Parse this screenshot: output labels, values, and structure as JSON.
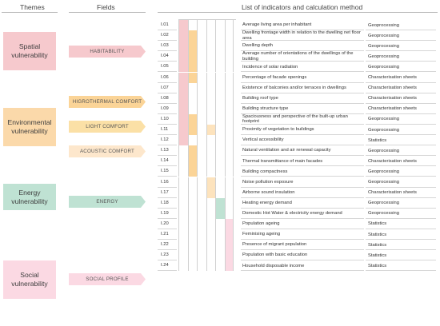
{
  "headers": {
    "themes": "Themes",
    "fields": "Fields",
    "list": "List of indicators and calculation method"
  },
  "colors": {
    "spatial": "#f6c9cd",
    "environmental": "#fbd9aa",
    "energy": "#bfe2d3",
    "social": "#fbd9e3",
    "cell_pink": "#f6c9cd",
    "cell_orange": "#fbd497",
    "cell_green": "#bfe2d3",
    "cell_rose": "#fbd9e3"
  },
  "themes": [
    {
      "label": "Spatial vulnerability",
      "key": "spatial"
    },
    {
      "label": "Environmental vulnerability",
      "key": "environmental"
    },
    {
      "label": "Energy vulnerability",
      "key": "energy"
    },
    {
      "label": "Social vulnerability",
      "key": "social"
    }
  ],
  "fields": [
    {
      "label": "HABITABILITY",
      "color": "#f6c9cd"
    },
    {
      "label": "HIGROTHERMAL COMFORT",
      "color": "#fbd497"
    },
    {
      "label": "LIGHT COMFORT",
      "color": "#fbe0a6"
    },
    {
      "label": "ACOUSTIC COMFORT",
      "color": "#fde7cc"
    },
    {
      "label": "ENERGY",
      "color": "#bfe2d3"
    },
    {
      "label": "SOCIAL PROFILE",
      "color": "#fbd9e3"
    }
  ],
  "indicators": [
    {
      "id": "I.01",
      "name": "Average living area per inhabitant",
      "method": "Geoprocessing",
      "cells": [
        1,
        0,
        0,
        0,
        0,
        0
      ]
    },
    {
      "id": "I.02",
      "name": "Dwelling frontage width in relation to the dwelling net floor area",
      "method": "Geoprocessing",
      "cells": [
        1,
        2,
        0,
        0,
        0,
        0
      ]
    },
    {
      "id": "I.03",
      "name": "Dwelling depth",
      "method": "Geoprocessing",
      "cells": [
        1,
        2,
        0,
        0,
        0,
        0
      ]
    },
    {
      "id": "I.04",
      "name": "Average number of orientations of the dwellings of the building",
      "method": "Geoprocessing",
      "cells": [
        1,
        2,
        0,
        0,
        0,
        0
      ]
    },
    {
      "id": "I.05",
      "name": "Incidence of solar radiation",
      "method": "Geoprocessing",
      "cells": [
        1,
        2,
        0,
        0,
        0,
        0
      ]
    },
    {
      "id": "I.06",
      "name": "Percentage of facade openings",
      "method": "Characterisation sheets",
      "cells": [
        1,
        2,
        0,
        0,
        0,
        0
      ]
    },
    {
      "id": "I.07",
      "name": "Existence of balconies and/or terraces in dwellings",
      "method": "Characterisation sheets",
      "cells": [
        1,
        0,
        0,
        0,
        0,
        0
      ]
    },
    {
      "id": "I.08",
      "name": "Building roof type",
      "method": "Characterisation sheets",
      "cells": [
        1,
        0,
        0,
        0,
        0,
        0
      ]
    },
    {
      "id": "I.09",
      "name": "Building structure type",
      "method": "Characterisation sheets",
      "cells": [
        1,
        0,
        0,
        0,
        0,
        0
      ]
    },
    {
      "id": "I.10",
      "name": "Spaciousness and perspective of the built-up urban footprint",
      "method": "Geoprocessing",
      "cells": [
        1,
        2,
        0,
        0,
        0,
        0
      ]
    },
    {
      "id": "I.11",
      "name": "Proximity of vegetation to buildings",
      "method": "Geoprocessing",
      "cells": [
        1,
        2,
        0,
        4,
        0,
        0
      ]
    },
    {
      "id": "I.12",
      "name": "Vertical accessibility",
      "method": "Statistics",
      "cells": [
        1,
        0,
        0,
        0,
        0,
        0
      ]
    },
    {
      "id": "I.13",
      "name": "Natural ventilation and air renewal capacity",
      "method": "Geoprocessing",
      "cells": [
        0,
        2,
        0,
        0,
        0,
        0
      ]
    },
    {
      "id": "I.14",
      "name": "Thermal transmittance of main facades",
      "method": "Characterisation sheets",
      "cells": [
        0,
        2,
        0,
        0,
        0,
        0
      ]
    },
    {
      "id": "I.15",
      "name": "Building compactness",
      "method": "Geoprocessing",
      "cells": [
        0,
        2,
        0,
        0,
        0,
        0
      ]
    },
    {
      "id": "I.16",
      "name": "Noise pollution exposure",
      "method": "Geoprocessing",
      "cells": [
        0,
        0,
        0,
        4,
        0,
        0
      ]
    },
    {
      "id": "I.17",
      "name": "Airborne sound insulation",
      "method": "Characterisation sheets",
      "cells": [
        0,
        0,
        0,
        4,
        0,
        0
      ]
    },
    {
      "id": "I.18",
      "name": "Heating energy demand",
      "method": "Geoprocessing",
      "cells": [
        0,
        0,
        0,
        0,
        5,
        0
      ]
    },
    {
      "id": "I.19",
      "name": "Domestic Hot Water & electricity energy demand",
      "method": "Geoprocessing",
      "cells": [
        0,
        0,
        0,
        0,
        5,
        0
      ]
    },
    {
      "id": "I.20",
      "name": "Population ageing",
      "method": "Statistics",
      "cells": [
        0,
        0,
        0,
        0,
        0,
        6
      ]
    },
    {
      "id": "I.21",
      "name": "Feminising ageing",
      "method": "Statistics",
      "cells": [
        0,
        0,
        0,
        0,
        0,
        6
      ]
    },
    {
      "id": "I.22",
      "name": "Presence of migrant population",
      "method": "Statistics",
      "cells": [
        0,
        0,
        0,
        0,
        0,
        6
      ]
    },
    {
      "id": "I.23",
      "name": "Population with basic education",
      "method": "Statistics",
      "cells": [
        0,
        0,
        0,
        0,
        0,
        6
      ]
    },
    {
      "id": "I.24",
      "name": "Household disposable income",
      "method": "Statistics",
      "cells": [
        0,
        0,
        0,
        0,
        0,
        6
      ]
    }
  ]
}
